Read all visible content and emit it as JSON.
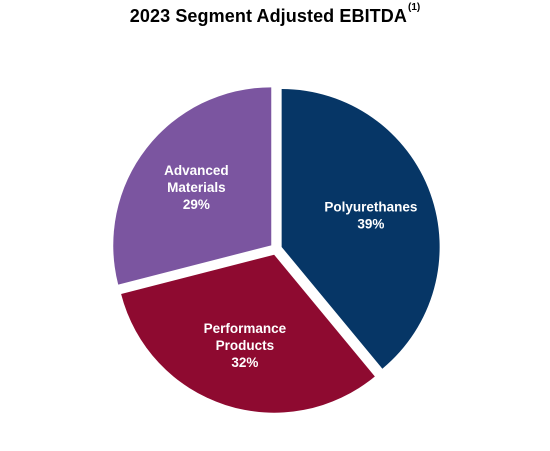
{
  "chart_data": {
    "type": "pie",
    "title": "2023 Segment Adjusted EBITDA",
    "title_superscript": "(1)",
    "slices": [
      {
        "label": [
          "Polyurethanes"
        ],
        "value": 39,
        "display": "39%",
        "color": "#063666"
      },
      {
        "label": [
          "Performance",
          "Products"
        ],
        "value": 32,
        "display": "32%",
        "color": "#8e0a30"
      },
      {
        "label": [
          "Advanced",
          "Materials"
        ],
        "value": 29,
        "display": "29%",
        "color": "#7b55a0"
      }
    ],
    "exploded": true,
    "start_angle_deg": 0,
    "direction": "clockwise",
    "legend": "none"
  }
}
